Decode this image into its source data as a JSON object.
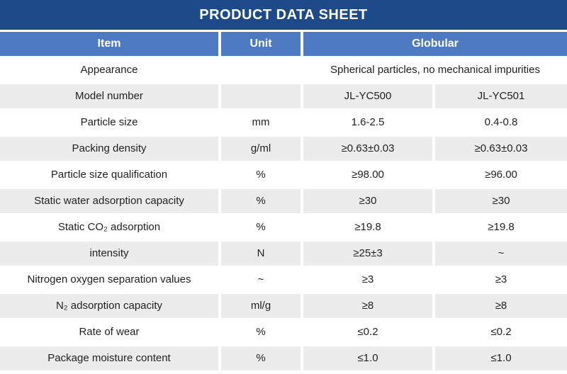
{
  "title": "PRODUCT DATA SHEET",
  "colors": {
    "title_bg": "#1e4a8a",
    "header_bg": "#4d7ac0",
    "row_alt_bg": "#ececec",
    "text": "#1f1f1f"
  },
  "table": {
    "headers": {
      "item": "Item",
      "unit": "Unit",
      "globular": "Globular"
    },
    "rows": [
      {
        "item": "Appearance",
        "unit": "",
        "span": "Spherical particles, no mechanical impurities"
      },
      {
        "item": "Model number",
        "unit": "",
        "v1": "JL-YC500",
        "v2": "JL-YC501"
      },
      {
        "item": "Particle size",
        "unit": "mm",
        "v1": "1.6-2.5",
        "v2": "0.4-0.8"
      },
      {
        "item": "Packing density",
        "unit": "g/ml",
        "v1": "≥0.63±0.03",
        "v2": "≥0.63±0.03"
      },
      {
        "item": "Particle size qualification",
        "unit": "%",
        "v1": "≥98.00",
        "v2": "≥96.00"
      },
      {
        "item": "Static water adsorption capacity",
        "unit": "%",
        "v1": "≥30",
        "v2": "≥30"
      },
      {
        "item": "Static CO₂ adsorption",
        "unit": "%",
        "v1": "≥19.8",
        "v2": "≥19.8"
      },
      {
        "item": "intensity",
        "unit": "N",
        "v1": "≥25±3",
        "v2": "~"
      },
      {
        "item": "Nitrogen oxygen separation values",
        "unit": "~",
        "v1": "≥3",
        "v2": "≥3"
      },
      {
        "item": "N₂ adsorption capacity",
        "unit": "ml/g",
        "v1": "≥8",
        "v2": "≥8"
      },
      {
        "item": "Rate of wear",
        "unit": "%",
        "v1": "≤0.2",
        "v2": "≤0.2"
      },
      {
        "item": "Package moisture content",
        "unit": "%",
        "v1": "≤1.0",
        "v2": "≤1.0"
      }
    ]
  }
}
